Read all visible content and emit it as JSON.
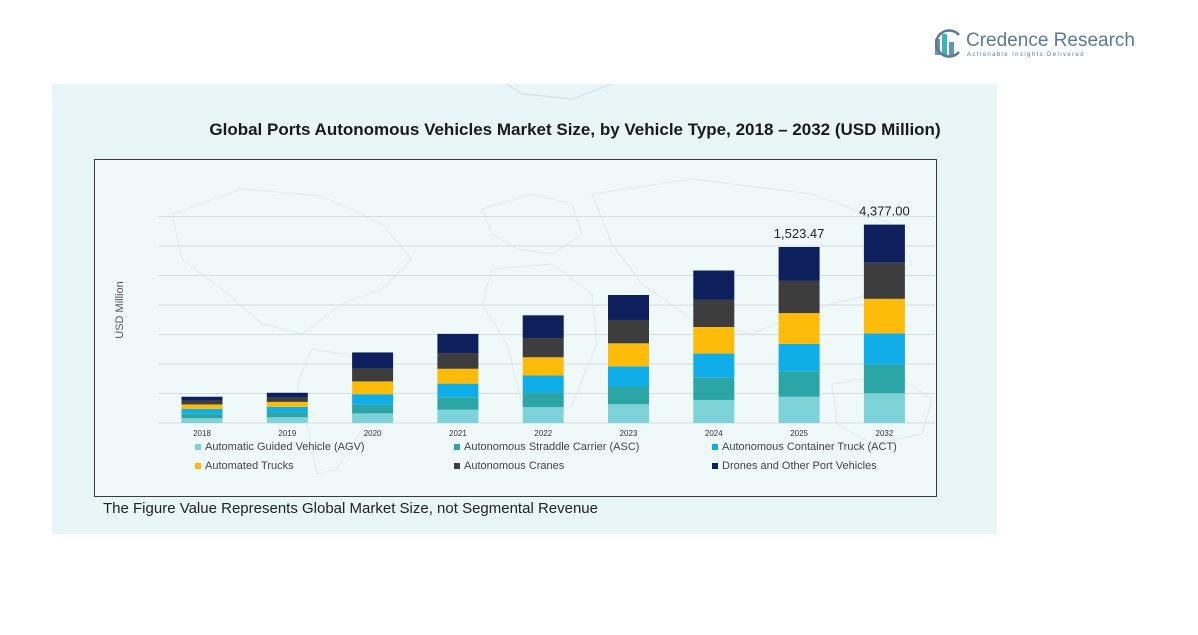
{
  "brand": {
    "name": "Credence Research",
    "tagline": "Actionable Insights Delivered",
    "colors": {
      "primary": "#5b7a99",
      "panel": "#e8f6f8"
    }
  },
  "chart_title": "Global Ports Autonomous Vehicles Market Size, by Vehicle Type, 2018 – 2032 (USD Million)",
  "footnote": "The Figure Value Represents Global Market Size, not Segmental Revenue",
  "chart_data": {
    "type": "bar",
    "stacked": true,
    "title": "Global Ports Autonomous Vehicles Market Size, by Vehicle Type, 2018 – 2032 (USD Million)",
    "ylabel": "USD Million",
    "xlabel": "",
    "categories": [
      "2018",
      "2019",
      "2020",
      "2021",
      "2022",
      "2023",
      "2024",
      "2025",
      "2032"
    ],
    "series": [
      {
        "name": "Automatic Guided Vehicle (AGV)",
        "color": "#7dd3d8",
        "values": [
          30,
          36,
          60,
          83,
          99,
          117,
          144,
          164,
          186
        ]
      },
      {
        "name": "Autonomous Straddle Carrier (ASC)",
        "color": "#2ca5a7",
        "values": [
          28,
          32,
          54,
          78,
          92,
          111,
          139,
          159,
          180
        ]
      },
      {
        "name": "Autonomous Container Truck (ACT)",
        "color": "#10aee8",
        "values": [
          30,
          33,
          66,
          85,
          106,
          126,
          151,
          172,
          194
        ]
      },
      {
        "name": "Automated Trucks",
        "color": "#fdbb0a",
        "values": [
          28,
          31,
          80,
          93,
          114,
          144,
          166,
          192,
          216
        ]
      },
      {
        "name": "Autonomous Cranes",
        "color": "#3d3d3d",
        "values": [
          24,
          28,
          80,
          98,
          120,
          146,
          172,
          201,
          226
        ]
      },
      {
        "name": "Drones and Other Port Vehicles",
        "color": "#0d1f5c",
        "values": [
          24,
          29,
          101,
          120,
          142,
          156,
          181,
          212,
          238
        ]
      }
    ],
    "data_labels": [
      {
        "category": "2025",
        "text": "1,523.47"
      },
      {
        "category": "2032",
        "text": "4,377.00"
      }
    ],
    "legend_position": "bottom",
    "grid": true
  }
}
